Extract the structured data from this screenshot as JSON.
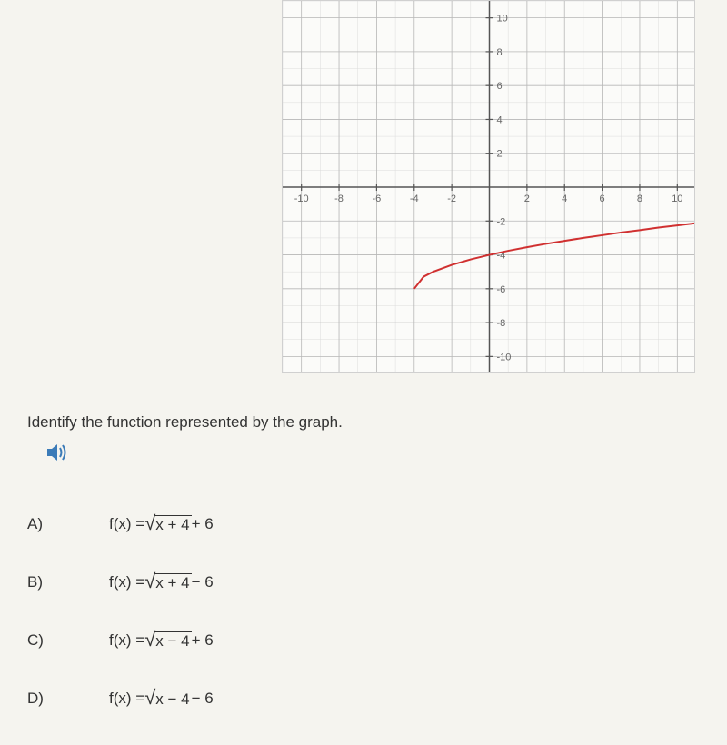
{
  "graph": {
    "type": "line",
    "xlim": [
      -11,
      11
    ],
    "ylim": [
      -11,
      11
    ],
    "xtick_labels": [
      "-10",
      "-8",
      "-6",
      "-4",
      "-2",
      "2",
      "4",
      "6",
      "8",
      "10"
    ],
    "xtick_values": [
      -10,
      -8,
      -6,
      -4,
      -2,
      2,
      4,
      6,
      8,
      10
    ],
    "ytick_labels": [
      "10",
      "8",
      "6",
      "4",
      "2",
      "-2",
      "-4",
      "-6",
      "-8",
      "-10"
    ],
    "ytick_values": [
      10,
      8,
      6,
      4,
      2,
      -2,
      -4,
      -6,
      -8,
      -10
    ],
    "minor_grid_step": 1,
    "major_grid_step": 2,
    "background_color": "#fbfbf9",
    "major_grid_color": "#b8b8b8",
    "minor_grid_color": "#dcdcdc",
    "axis_color": "#555555",
    "tick_label_color": "#666666",
    "tick_label_fontsize": 11,
    "curve_color": "#d03030",
    "curve_width": 2,
    "curve_points": [
      [
        -4,
        -6
      ],
      [
        -3.5,
        -5.29
      ],
      [
        -3,
        -5
      ],
      [
        -2,
        -4.59
      ],
      [
        -1,
        -4.27
      ],
      [
        0,
        -4
      ],
      [
        1,
        -3.76
      ],
      [
        2,
        -3.55
      ],
      [
        3,
        -3.35
      ],
      [
        4,
        -3.17
      ],
      [
        5,
        -3
      ],
      [
        6,
        -2.84
      ],
      [
        7,
        -2.68
      ],
      [
        8,
        -2.54
      ],
      [
        9,
        -2.39
      ],
      [
        10,
        -2.26
      ],
      [
        11,
        -2.13
      ]
    ]
  },
  "question": {
    "text": "Identify the function represented by the graph.",
    "audio_icon_color": "#3b7bb8"
  },
  "options": [
    {
      "label": "A)",
      "prefix": "f(x) = ",
      "sqrt_content": "x + 4",
      "suffix": " + 6"
    },
    {
      "label": "B)",
      "prefix": "f(x) = ",
      "sqrt_content": "x + 4",
      "suffix": " − 6"
    },
    {
      "label": "C)",
      "prefix": "f(x) = ",
      "sqrt_content": "x − 4",
      "suffix": " + 6"
    },
    {
      "label": "D)",
      "prefix": "f(x) = ",
      "sqrt_content": "x − 4",
      "suffix": " − 6"
    }
  ]
}
